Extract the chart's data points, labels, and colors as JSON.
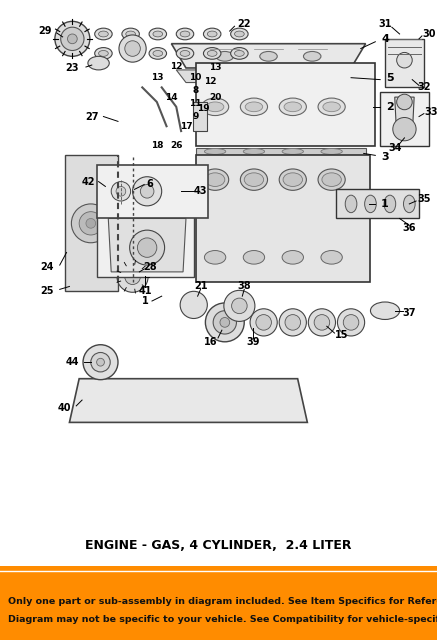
{
  "title": "ENGINE - GAS, 4 CYLINDER,  2.4 LITER",
  "footer_text": "Only one part or sub-assembly in diagram included. See Item Specifics for Reference #.\nDiagram may not be specific to your vehicle. See Compatibility for vehicle-specific diagrams.",
  "footer_bg": "#FF8C00",
  "footer_text_color": "#1a1a1a",
  "bg_color": "#ffffff",
  "diagram_bg": "#f5f5f5",
  "title_fontsize": 9,
  "footer_fontsize": 7.5,
  "fig_width": 4.37,
  "fig_height": 6.4,
  "dpi": 100
}
